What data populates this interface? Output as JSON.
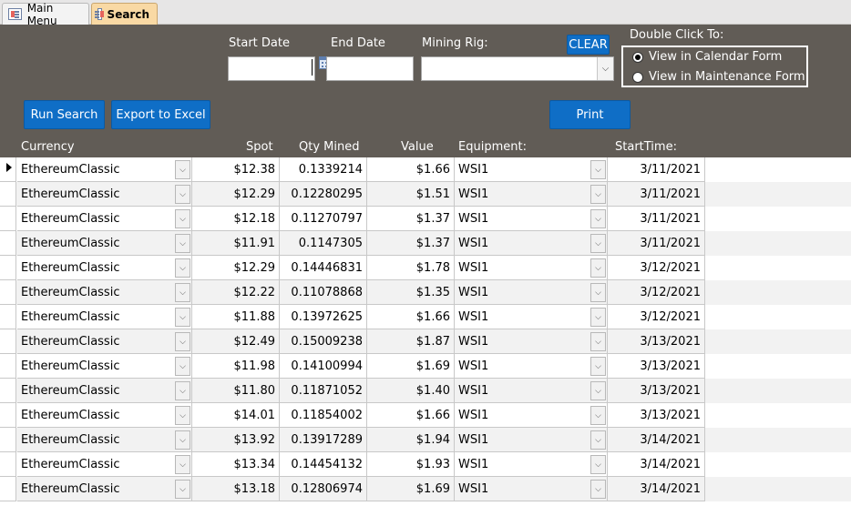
{
  "tabs": [
    {
      "label": "Main Menu",
      "active": false
    },
    {
      "label": "Search",
      "active": true
    }
  ],
  "filters": {
    "start_date_label": "Start Date",
    "start_date_value": "",
    "end_date_label": "End Date",
    "end_date_value": "",
    "mining_rig_label": "Mining Rig:",
    "mining_rig_value": ""
  },
  "buttons": {
    "clear": "CLEAR",
    "run_search": "Run Search",
    "export": "Export to Excel",
    "print": "Print"
  },
  "double_click": {
    "title": "Double Click To:",
    "options": [
      {
        "label": "View in Calendar Form",
        "selected": true
      },
      {
        "label": "View in Maintenance Form",
        "selected": false
      }
    ]
  },
  "columns": {
    "currency": "Currency",
    "spot": "Spot",
    "qty": "Qty Mined",
    "value": "Value",
    "equipment": "Equipment:",
    "start": "StartTime:"
  },
  "rows": [
    {
      "currency": "EthereumClassic",
      "spot": "$12.38",
      "qty": "0.1339214",
      "value": "$1.66",
      "equipment": "WSI1",
      "start": "3/11/2021"
    },
    {
      "currency": "EthereumClassic",
      "spot": "$12.29",
      "qty": "0.12280295",
      "value": "$1.51",
      "equipment": "WSI1",
      "start": "3/11/2021"
    },
    {
      "currency": "EthereumClassic",
      "spot": "$12.18",
      "qty": "0.11270797",
      "value": "$1.37",
      "equipment": "WSI1",
      "start": "3/11/2021"
    },
    {
      "currency": "EthereumClassic",
      "spot": "$11.91",
      "qty": "0.1147305",
      "value": "$1.37",
      "equipment": "WSI1",
      "start": "3/11/2021"
    },
    {
      "currency": "EthereumClassic",
      "spot": "$12.29",
      "qty": "0.14446831",
      "value": "$1.78",
      "equipment": "WSI1",
      "start": "3/12/2021"
    },
    {
      "currency": "EthereumClassic",
      "spot": "$12.22",
      "qty": "0.11078868",
      "value": "$1.35",
      "equipment": "WSI1",
      "start": "3/12/2021"
    },
    {
      "currency": "EthereumClassic",
      "spot": "$11.88",
      "qty": "0.13972625",
      "value": "$1.66",
      "equipment": "WSI1",
      "start": "3/12/2021"
    },
    {
      "currency": "EthereumClassic",
      "spot": "$12.49",
      "qty": "0.15009238",
      "value": "$1.87",
      "equipment": "WSI1",
      "start": "3/13/2021"
    },
    {
      "currency": "EthereumClassic",
      "spot": "$11.98",
      "qty": "0.14100994",
      "value": "$1.69",
      "equipment": "WSI1",
      "start": "3/13/2021"
    },
    {
      "currency": "EthereumClassic",
      "spot": "$11.80",
      "qty": "0.11871052",
      "value": "$1.40",
      "equipment": "WSI1",
      "start": "3/13/2021"
    },
    {
      "currency": "EthereumClassic",
      "spot": "$14.01",
      "qty": "0.11854002",
      "value": "$1.66",
      "equipment": "WSI1",
      "start": "3/13/2021"
    },
    {
      "currency": "EthereumClassic",
      "spot": "$13.92",
      "qty": "0.13917289",
      "value": "$1.94",
      "equipment": "WSI1",
      "start": "3/14/2021"
    },
    {
      "currency": "EthereumClassic",
      "spot": "$13.34",
      "qty": "0.14454132",
      "value": "$1.93",
      "equipment": "WSI1",
      "start": "3/14/2021"
    },
    {
      "currency": "EthereumClassic",
      "spot": "$13.18",
      "qty": "0.12806974",
      "value": "$1.69",
      "equipment": "WSI1",
      "start": "3/14/2021"
    }
  ],
  "icons": {
    "tab": "form-icon",
    "calendar": "calendar-icon",
    "dropdown": "chevron-down-icon",
    "record_selector": "current-record-arrow-icon"
  },
  "colors": {
    "header_bg": "#615c56",
    "button_blue": "#0f6ec6",
    "active_tab": "#f9d9a4",
    "alt_row": "#f2f2f2"
  }
}
